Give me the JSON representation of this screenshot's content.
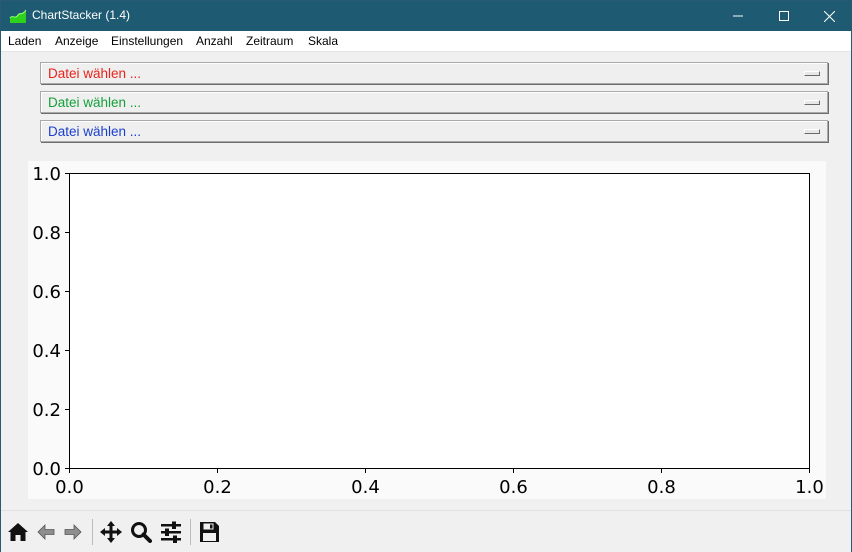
{
  "window": {
    "title": "ChartStacker (1.4)",
    "icon": "chart-area-icon",
    "controls": [
      "minimize-icon",
      "maximize-icon",
      "close-icon"
    ]
  },
  "menu": {
    "items": [
      "Laden",
      "Anzeige",
      "Einstellungen",
      "Anzahl",
      "Zeitraum",
      "Skala"
    ]
  },
  "file_selectors": [
    {
      "label": "Datei wählen ...",
      "color": "#e8231b"
    },
    {
      "label": "Datei wählen ...",
      "color": "#14a03a"
    },
    {
      "label": "Datei wählen ...",
      "color": "#1a3fd0"
    }
  ],
  "chart_data": {
    "type": "line",
    "series": [],
    "xlim": [
      0.0,
      1.0
    ],
    "ylim": [
      0.0,
      1.0
    ],
    "x_ticks": [
      "0.0",
      "0.2",
      "0.4",
      "0.6",
      "0.8",
      "1.0"
    ],
    "y_ticks": [
      "0.0",
      "0.2",
      "0.4",
      "0.6",
      "0.8",
      "1.0"
    ],
    "grid": false
  },
  "toolbar": {
    "tools": [
      "home-icon",
      "back-icon",
      "forward-icon",
      "pan-icon",
      "zoom-icon",
      "configure-subplots-icon",
      "save-icon"
    ]
  }
}
